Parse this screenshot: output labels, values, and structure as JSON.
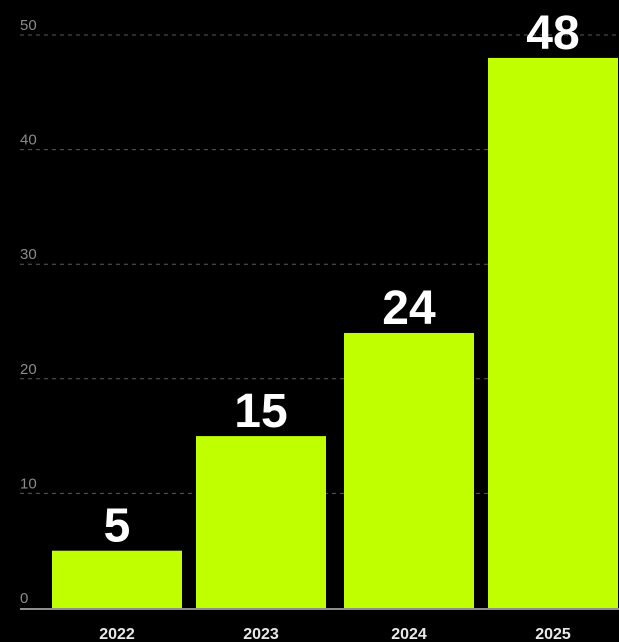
{
  "chart_data": {
    "type": "bar",
    "categories": [
      "2022",
      "2023",
      "2024",
      "2025"
    ],
    "values": [
      5,
      15,
      24,
      48
    ],
    "data_labels": [
      "5",
      "15",
      "24",
      "48"
    ],
    "ylim": [
      0,
      50
    ],
    "y_ticks": [
      "0",
      "10",
      "20",
      "30",
      "40",
      "50"
    ],
    "grid": true,
    "grid_style": "dashed",
    "title": "",
    "xlabel": "",
    "ylabel": ""
  },
  "colors": {
    "background": "#000000",
    "bar": "#bfff00",
    "grid": "#5a5a5a",
    "axis": "#bdbdbd",
    "data_label": "#ffffff",
    "tick_label": "#8a8a8a"
  }
}
